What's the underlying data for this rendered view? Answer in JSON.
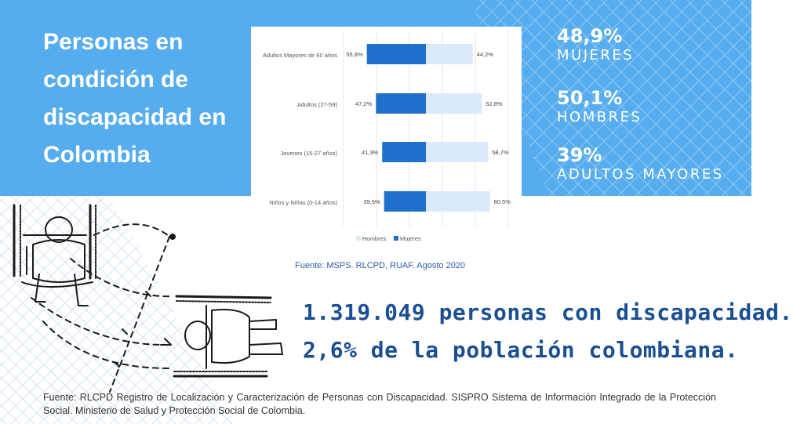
{
  "title": "Personas en condición de discapacidad en Colombia",
  "chart_data": {
    "type": "bar",
    "orientation": "horizontal-diverging",
    "categories": [
      "Adultos Mayores de 60 años",
      "Adultos (27-59)",
      "Jovenes (15-27 años)",
      "Niños y Niñas (0-14 años)"
    ],
    "series": [
      {
        "name": "Mujeres",
        "values": [
          55.8,
          47.2,
          41.3,
          39.5
        ],
        "labels": [
          "55,8%",
          "47,2%",
          "41,3%",
          "39,5%"
        ],
        "color": "#1f6fcc"
      },
      {
        "name": "Hombres",
        "values": [
          44.2,
          52.8,
          58.7,
          60.5
        ],
        "labels": [
          "44,2%",
          "52,8%",
          "58,7%",
          "60,5%"
        ],
        "color": "#dce9fb"
      }
    ],
    "legend": [
      "Hombres",
      "Mujeres"
    ],
    "legend_position": "bottom",
    "grid": true
  },
  "chart_source": "Fuente: MSPS. RLCPD, RUAF. Agosto 2020",
  "stats": [
    {
      "value": "48,9%",
      "label": "MUJERES"
    },
    {
      "value": "50,1%",
      "label": "HOMBRES"
    },
    {
      "value": "39%",
      "label": "ADULTOS MAYORES"
    }
  ],
  "headlines": [
    "1.319.049 personas con discapacidad.",
    "2,6% de la población colombiana."
  ],
  "footer_source": "Fuente: RLCPD Registro de Localización y Caracterización de Personas con Discapacidad. SISPRO Sistema de Información Integrado de la Protección Social. Ministerio de Salud y Protección Social de Colombia.",
  "colors": {
    "band": "#55acee",
    "headline": "#1b4f93",
    "mujeres": "#1f6fcc",
    "hombres": "#dce9fb"
  }
}
